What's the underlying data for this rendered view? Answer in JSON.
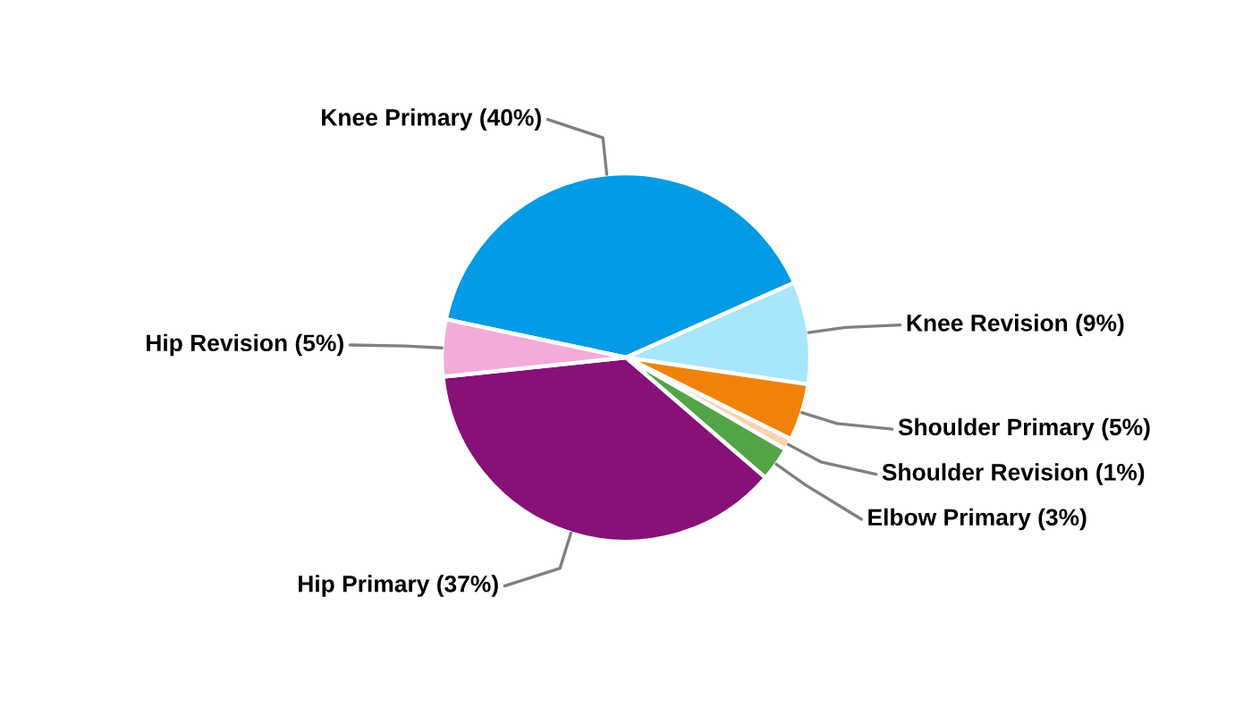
{
  "chart_data": {
    "type": "pie",
    "categories": [
      "Knee Primary",
      "Knee Revision",
      "Shoulder Primary",
      "Shoulder Revision",
      "Elbow Primary",
      "Hip Primary",
      "Hip Revision"
    ],
    "values": [
      40,
      9,
      5,
      1,
      3,
      37,
      5
    ],
    "colors": [
      "#039be5",
      "#a7e6fc",
      "#f0820a",
      "#fcd3b0",
      "#52a447",
      "#871177",
      "#f2acd9"
    ],
    "value_labels": [
      "(40%)",
      "(9%)",
      "(5%)",
      "(1%)",
      "(3%)",
      "(37%)",
      "(5%)"
    ]
  }
}
